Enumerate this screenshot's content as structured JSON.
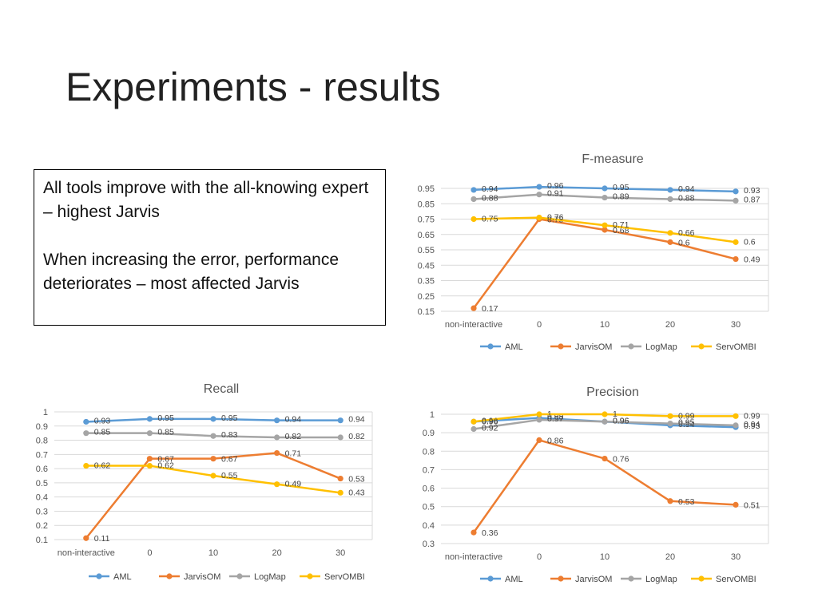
{
  "slide": {
    "title": "Experiments - results",
    "notes": [
      "All tools improve with the all-knowing expert – highest Jarvis",
      "When increasing the error, performance deteriorates – most affected Jarvis"
    ]
  },
  "colors": {
    "AML": "#5B9BD5",
    "JarvisOM": "#ED7D31",
    "LogMap": "#A5A5A5",
    "ServOMBI": "#FFC000",
    "grid": "#D9D9D9",
    "text": "#555555"
  },
  "chart_data": [
    {
      "id": "fmeasure",
      "type": "line",
      "title": "F-measure",
      "categories": [
        "non-interactive",
        "0",
        "10",
        "20",
        "30"
      ],
      "ylim": [
        0.15,
        0.95
      ],
      "yticks": [
        "0.15",
        "0.25",
        "0.35",
        "0.45",
        "0.55",
        "0.65",
        "0.75",
        "0.85",
        "0.95"
      ],
      "legend_position": "bottom",
      "series": [
        {
          "name": "AML",
          "values": [
            0.94,
            0.96,
            0.95,
            0.94,
            0.93
          ],
          "labels": [
            "0.94",
            "0.96",
            "0.95",
            "0.94",
            "0.93"
          ]
        },
        {
          "name": "JarvisOM",
          "values": [
            0.17,
            0.75,
            0.68,
            0.6,
            0.49
          ],
          "labels": [
            "0.17",
            "0.75",
            "0.68",
            "0.6",
            "0.49"
          ]
        },
        {
          "name": "LogMap",
          "values": [
            0.88,
            0.91,
            0.89,
            0.88,
            0.87
          ],
          "labels": [
            "0.88",
            "0.91",
            "0.89",
            "0.88",
            "0.87"
          ]
        },
        {
          "name": "ServOMBI",
          "values": [
            0.75,
            0.76,
            0.71,
            0.66,
            0.6
          ],
          "labels": [
            "0.75",
            "0.76",
            "0.71",
            "0.66",
            "0.6"
          ]
        }
      ]
    },
    {
      "id": "recall",
      "type": "line",
      "title": "Recall",
      "categories": [
        "non-interactive",
        "0",
        "10",
        "20",
        "30"
      ],
      "ylim": [
        0.1,
        1.0
      ],
      "yticks": [
        "0.1",
        "0.2",
        "0.3",
        "0.4",
        "0.5",
        "0.6",
        "0.7",
        "0.8",
        "0.9",
        "1"
      ],
      "legend_position": "bottom",
      "series": [
        {
          "name": "AML",
          "values": [
            0.93,
            0.95,
            0.95,
            0.94,
            0.94
          ],
          "labels": [
            "0.93",
            "0.95",
            "0.95",
            "0.94",
            "0.94"
          ]
        },
        {
          "name": "JarvisOM",
          "values": [
            0.11,
            0.67,
            0.67,
            0.71,
            0.53
          ],
          "labels": [
            "0.11",
            "0.67",
            "0.67",
            "0.71",
            "0.53"
          ]
        },
        {
          "name": "LogMap",
          "values": [
            0.85,
            0.85,
            0.83,
            0.82,
            0.82
          ],
          "labels": [
            "0.85",
            "0.85",
            "0.83",
            "0.82",
            "0.82"
          ]
        },
        {
          "name": "ServOMBI",
          "values": [
            0.62,
            0.62,
            0.55,
            0.49,
            0.43
          ],
          "labels": [
            "0.62",
            "0.62",
            "0.55",
            "0.49",
            "0.43"
          ]
        }
      ]
    },
    {
      "id": "precision",
      "type": "line",
      "title": "Precision",
      "categories": [
        "non-interactive",
        "0",
        "10",
        "20",
        "30"
      ],
      "ylim": [
        0.3,
        1.0
      ],
      "yticks": [
        "0.3",
        "0.4",
        "0.5",
        "0.6",
        "0.7",
        "0.8",
        "0.9",
        "1"
      ],
      "legend_position": "bottom",
      "series": [
        {
          "name": "AML",
          "values": [
            0.96,
            0.98,
            0.96,
            0.94,
            0.93
          ],
          "labels": [
            "0.96",
            "0.98",
            "0.96",
            "0.94",
            "0.93"
          ]
        },
        {
          "name": "JarvisOM",
          "values": [
            0.36,
            0.86,
            0.76,
            0.53,
            0.51
          ],
          "labels": [
            "0.36",
            "0.86",
            "0.76",
            "0.53",
            "0.51"
          ]
        },
        {
          "name": "LogMap",
          "values": [
            0.92,
            0.97,
            0.96,
            0.95,
            0.94
          ],
          "labels": [
            "0.92",
            "0.97",
            "0.96",
            "0.95",
            "0.94"
          ]
        },
        {
          "name": "ServOMBI",
          "values": [
            0.96,
            1.0,
            1.0,
            0.99,
            0.99
          ],
          "labels": [
            "0.96",
            "1",
            "1",
            "0.99",
            "0.99"
          ]
        }
      ]
    }
  ]
}
